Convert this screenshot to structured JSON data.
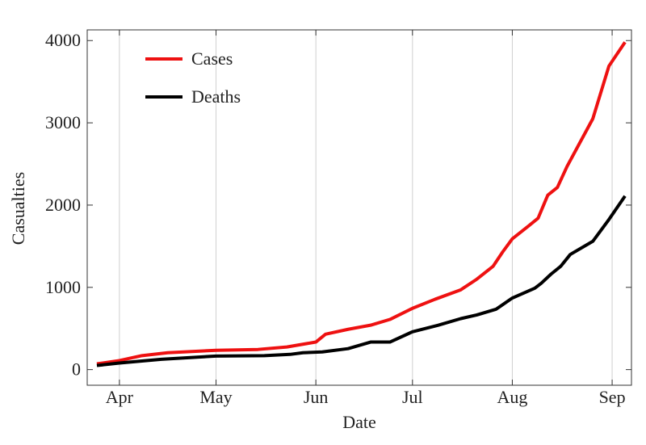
{
  "chart_data": {
    "type": "line",
    "x_label": "Date",
    "y_label": "Casualties",
    "x": [
      -7,
      0,
      7,
      13,
      15,
      30,
      43,
      45,
      52,
      53,
      57,
      61,
      63,
      64,
      71,
      78,
      84,
      91,
      98,
      99,
      106,
      111,
      116,
      117,
      119,
      122,
      127,
      129,
      130,
      131,
      133,
      134,
      136,
      137,
      139,
      140,
      147,
      152,
      157
    ],
    "series": [
      {
        "name": "Cases",
        "color": "#ee1111",
        "values": [
          70,
          110,
          170,
          null,
          205,
          235,
          245,
          null,
          275,
          null,
          null,
          335,
          null,
          430,
          490,
          540,
          610,
          745,
          855,
          null,
          970,
          1100,
          1255,
          null,
          1430,
          1590,
          1745,
          null,
          1840,
          null,
          2120,
          null,
          2215,
          null,
          2470,
          null,
          3050,
          3690,
          3980
        ]
      },
      {
        "name": "Deaths",
        "color": "#000000",
        "values": [
          50,
          80,
          null,
          125,
          null,
          165,
          null,
          170,
          null,
          185,
          205,
          null,
          215,
          null,
          255,
          335,
          335,
          460,
          null,
          540,
          620,
          665,
          null,
          735,
          null,
          870,
          null,
          990,
          null,
          1050,
          null,
          1160,
          null,
          1255,
          null,
          1400,
          1560,
          1825,
          2110
        ]
      }
    ],
    "xlim": [
      -10,
      159
    ],
    "xticks": [
      {
        "value": 0,
        "label": "Apr"
      },
      {
        "value": 30,
        "label": "May"
      },
      {
        "value": 61,
        "label": "Jun"
      },
      {
        "value": 91,
        "label": "Jul"
      },
      {
        "value": 122,
        "label": "Aug"
      },
      {
        "value": 153,
        "label": "Sep"
      }
    ],
    "ylim": [
      -190,
      4130
    ],
    "yticks": [
      0,
      1000,
      2000,
      3000,
      4000
    ],
    "grid": "x",
    "legend": "top-left"
  }
}
